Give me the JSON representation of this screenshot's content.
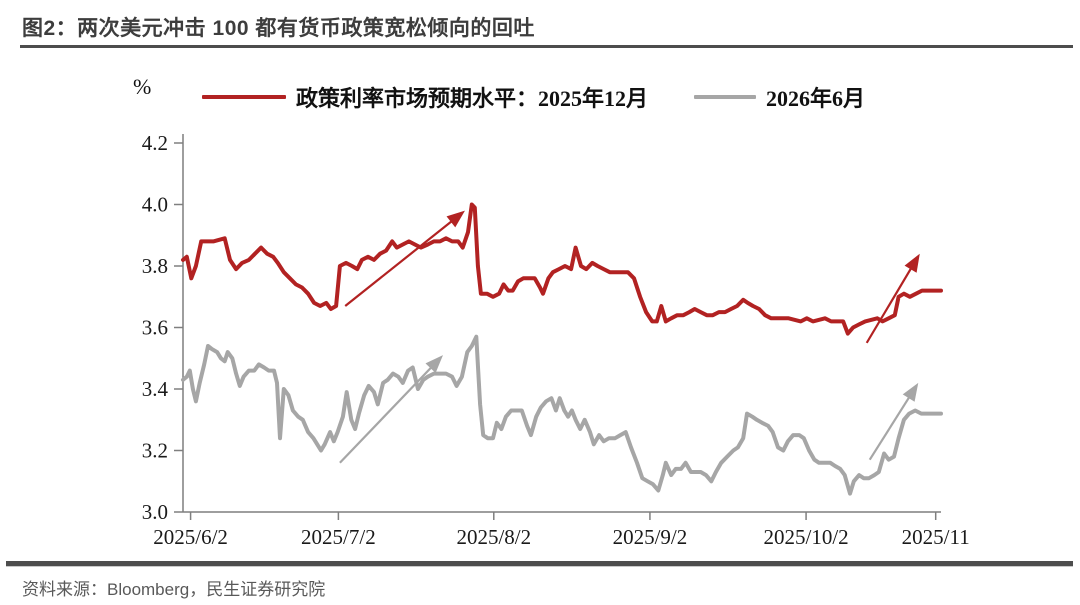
{
  "header": {
    "title": "图2：两次美元冲击 100 都有货币政策宽松倾向的回吐"
  },
  "footer": {
    "source": "资料来源：Bloomberg，民生证券研究院"
  },
  "colors": {
    "accent_red": "#B22222",
    "accent_gray": "#A6A6A6",
    "rule_dark": "#4D4D4D",
    "axis_gray": "#7F7F7F"
  },
  "chart_data": {
    "type": "line",
    "title": "两次美元冲击100都有货币政策宽松倾向的回吐",
    "unit_label": "%",
    "ylabel": "%",
    "xlabel": "",
    "grid": false,
    "legend_position": "top",
    "ylim": [
      3.0,
      4.2
    ],
    "yticks": [
      3.0,
      3.2,
      3.4,
      3.6,
      3.8,
      4.0,
      4.2
    ],
    "xticks": [
      {
        "label": "2025/6/2",
        "pos": 0.01
      },
      {
        "label": "2025/7/2",
        "pos": 0.205
      },
      {
        "label": "2025/8/2",
        "pos": 0.41
      },
      {
        "label": "2025/9/2",
        "pos": 0.616
      },
      {
        "label": "2025/10/2",
        "pos": 0.822
      },
      {
        "label": "2025/11",
        "pos": 0.993
      }
    ],
    "series": [
      {
        "name": "政策利率市场预期水平：2025年12月",
        "color": "#B22222",
        "points": [
          [
            0.0,
            3.82
          ],
          [
            0.005,
            3.83
          ],
          [
            0.011,
            3.76
          ],
          [
            0.017,
            3.8
          ],
          [
            0.024,
            3.88
          ],
          [
            0.04,
            3.88
          ],
          [
            0.055,
            3.89
          ],
          [
            0.062,
            3.82
          ],
          [
            0.07,
            3.79
          ],
          [
            0.078,
            3.81
          ],
          [
            0.087,
            3.82
          ],
          [
            0.095,
            3.84
          ],
          [
            0.103,
            3.86
          ],
          [
            0.111,
            3.84
          ],
          [
            0.119,
            3.83
          ],
          [
            0.125,
            3.81
          ],
          [
            0.133,
            3.78
          ],
          [
            0.141,
            3.76
          ],
          [
            0.149,
            3.74
          ],
          [
            0.157,
            3.73
          ],
          [
            0.165,
            3.71
          ],
          [
            0.173,
            3.68
          ],
          [
            0.181,
            3.67
          ],
          [
            0.189,
            3.68
          ],
          [
            0.195,
            3.66
          ],
          [
            0.202,
            3.67
          ],
          [
            0.207,
            3.8
          ],
          [
            0.215,
            3.81
          ],
          [
            0.223,
            3.8
          ],
          [
            0.23,
            3.79
          ],
          [
            0.236,
            3.82
          ],
          [
            0.244,
            3.83
          ],
          [
            0.252,
            3.82
          ],
          [
            0.26,
            3.84
          ],
          [
            0.268,
            3.85
          ],
          [
            0.276,
            3.88
          ],
          [
            0.282,
            3.86
          ],
          [
            0.29,
            3.87
          ],
          [
            0.298,
            3.88
          ],
          [
            0.306,
            3.87
          ],
          [
            0.314,
            3.86
          ],
          [
            0.323,
            3.87
          ],
          [
            0.331,
            3.88
          ],
          [
            0.339,
            3.88
          ],
          [
            0.347,
            3.89
          ],
          [
            0.355,
            3.88
          ],
          [
            0.363,
            3.88
          ],
          [
            0.369,
            3.86
          ],
          [
            0.376,
            3.91
          ],
          [
            0.381,
            4.0
          ],
          [
            0.385,
            3.99
          ],
          [
            0.389,
            3.8
          ],
          [
            0.393,
            3.71
          ],
          [
            0.401,
            3.71
          ],
          [
            0.409,
            3.7
          ],
          [
            0.417,
            3.71
          ],
          [
            0.423,
            3.74
          ],
          [
            0.429,
            3.72
          ],
          [
            0.435,
            3.72
          ],
          [
            0.442,
            3.75
          ],
          [
            0.449,
            3.76
          ],
          [
            0.464,
            3.76
          ],
          [
            0.471,
            3.73
          ],
          [
            0.475,
            3.71
          ],
          [
            0.482,
            3.76
          ],
          [
            0.488,
            3.78
          ],
          [
            0.496,
            3.79
          ],
          [
            0.504,
            3.8
          ],
          [
            0.512,
            3.79
          ],
          [
            0.518,
            3.86
          ],
          [
            0.525,
            3.8
          ],
          [
            0.532,
            3.79
          ],
          [
            0.54,
            3.81
          ],
          [
            0.547,
            3.8
          ],
          [
            0.555,
            3.79
          ],
          [
            0.563,
            3.78
          ],
          [
            0.579,
            3.78
          ],
          [
            0.587,
            3.78
          ],
          [
            0.595,
            3.76
          ],
          [
            0.603,
            3.7
          ],
          [
            0.611,
            3.65
          ],
          [
            0.619,
            3.62
          ],
          [
            0.625,
            3.62
          ],
          [
            0.631,
            3.67
          ],
          [
            0.637,
            3.62
          ],
          [
            0.644,
            3.63
          ],
          [
            0.652,
            3.64
          ],
          [
            0.66,
            3.64
          ],
          [
            0.668,
            3.65
          ],
          [
            0.675,
            3.66
          ],
          [
            0.683,
            3.65
          ],
          [
            0.691,
            3.64
          ],
          [
            0.699,
            3.64
          ],
          [
            0.707,
            3.65
          ],
          [
            0.715,
            3.65
          ],
          [
            0.723,
            3.66
          ],
          [
            0.731,
            3.67
          ],
          [
            0.739,
            3.69
          ],
          [
            0.745,
            3.68
          ],
          [
            0.752,
            3.67
          ],
          [
            0.76,
            3.66
          ],
          [
            0.768,
            3.64
          ],
          [
            0.776,
            3.63
          ],
          [
            0.799,
            3.63
          ],
          [
            0.815,
            3.62
          ],
          [
            0.823,
            3.63
          ],
          [
            0.831,
            3.62
          ],
          [
            0.847,
            3.63
          ],
          [
            0.855,
            3.62
          ],
          [
            0.871,
            3.62
          ],
          [
            0.877,
            3.58
          ],
          [
            0.884,
            3.6
          ],
          [
            0.892,
            3.61
          ],
          [
            0.9,
            3.62
          ],
          [
            0.916,
            3.63
          ],
          [
            0.923,
            3.62
          ],
          [
            0.931,
            3.63
          ],
          [
            0.939,
            3.64
          ],
          [
            0.944,
            3.7
          ],
          [
            0.951,
            3.71
          ],
          [
            0.959,
            3.7
          ],
          [
            0.967,
            3.71
          ],
          [
            0.975,
            3.72
          ],
          [
            1.0,
            3.72
          ]
        ]
      },
      {
        "name": "2026年6月",
        "color": "#A6A6A6",
        "points": [
          [
            0.0,
            3.43
          ],
          [
            0.005,
            3.44
          ],
          [
            0.009,
            3.46
          ],
          [
            0.013,
            3.4
          ],
          [
            0.017,
            3.36
          ],
          [
            0.022,
            3.42
          ],
          [
            0.028,
            3.48
          ],
          [
            0.033,
            3.54
          ],
          [
            0.038,
            3.53
          ],
          [
            0.045,
            3.52
          ],
          [
            0.05,
            3.5
          ],
          [
            0.055,
            3.49
          ],
          [
            0.059,
            3.52
          ],
          [
            0.065,
            3.5
          ],
          [
            0.07,
            3.45
          ],
          [
            0.075,
            3.41
          ],
          [
            0.08,
            3.44
          ],
          [
            0.087,
            3.46
          ],
          [
            0.094,
            3.46
          ],
          [
            0.1,
            3.48
          ],
          [
            0.107,
            3.47
          ],
          [
            0.113,
            3.46
          ],
          [
            0.12,
            3.46
          ],
          [
            0.124,
            3.42
          ],
          [
            0.128,
            3.24
          ],
          [
            0.133,
            3.4
          ],
          [
            0.139,
            3.38
          ],
          [
            0.145,
            3.33
          ],
          [
            0.152,
            3.31
          ],
          [
            0.158,
            3.3
          ],
          [
            0.165,
            3.26
          ],
          [
            0.172,
            3.24
          ],
          [
            0.177,
            3.22
          ],
          [
            0.182,
            3.2
          ],
          [
            0.187,
            3.22
          ],
          [
            0.194,
            3.26
          ],
          [
            0.199,
            3.23
          ],
          [
            0.204,
            3.26
          ],
          [
            0.211,
            3.31
          ],
          [
            0.216,
            3.39
          ],
          [
            0.222,
            3.3
          ],
          [
            0.227,
            3.27
          ],
          [
            0.232,
            3.32
          ],
          [
            0.239,
            3.38
          ],
          [
            0.245,
            3.41
          ],
          [
            0.252,
            3.39
          ],
          [
            0.257,
            3.35
          ],
          [
            0.264,
            3.42
          ],
          [
            0.27,
            3.43
          ],
          [
            0.277,
            3.45
          ],
          [
            0.284,
            3.44
          ],
          [
            0.29,
            3.42
          ],
          [
            0.297,
            3.46
          ],
          [
            0.303,
            3.47
          ],
          [
            0.31,
            3.4
          ],
          [
            0.317,
            3.43
          ],
          [
            0.323,
            3.44
          ],
          [
            0.331,
            3.45
          ],
          [
            0.347,
            3.45
          ],
          [
            0.355,
            3.44
          ],
          [
            0.361,
            3.41
          ],
          [
            0.368,
            3.44
          ],
          [
            0.375,
            3.52
          ],
          [
            0.381,
            3.54
          ],
          [
            0.387,
            3.57
          ],
          [
            0.392,
            3.35
          ],
          [
            0.396,
            3.25
          ],
          [
            0.402,
            3.24
          ],
          [
            0.409,
            3.24
          ],
          [
            0.414,
            3.29
          ],
          [
            0.42,
            3.27
          ],
          [
            0.426,
            3.31
          ],
          [
            0.433,
            3.33
          ],
          [
            0.447,
            3.33
          ],
          [
            0.454,
            3.28
          ],
          [
            0.459,
            3.25
          ],
          [
            0.466,
            3.31
          ],
          [
            0.472,
            3.34
          ],
          [
            0.479,
            3.36
          ],
          [
            0.486,
            3.37
          ],
          [
            0.492,
            3.33
          ],
          [
            0.497,
            3.37
          ],
          [
            0.503,
            3.33
          ],
          [
            0.508,
            3.31
          ],
          [
            0.513,
            3.33
          ],
          [
            0.518,
            3.3
          ],
          [
            0.524,
            3.27
          ],
          [
            0.53,
            3.3
          ],
          [
            0.537,
            3.26
          ],
          [
            0.542,
            3.22
          ],
          [
            0.549,
            3.25
          ],
          [
            0.555,
            3.23
          ],
          [
            0.562,
            3.24
          ],
          [
            0.57,
            3.24
          ],
          [
            0.577,
            3.25
          ],
          [
            0.584,
            3.26
          ],
          [
            0.591,
            3.21
          ],
          [
            0.599,
            3.16
          ],
          [
            0.606,
            3.11
          ],
          [
            0.613,
            3.1
          ],
          [
            0.62,
            3.09
          ],
          [
            0.627,
            3.07
          ],
          [
            0.633,
            3.12
          ],
          [
            0.637,
            3.16
          ],
          [
            0.644,
            3.12
          ],
          [
            0.65,
            3.14
          ],
          [
            0.657,
            3.14
          ],
          [
            0.663,
            3.16
          ],
          [
            0.67,
            3.13
          ],
          [
            0.677,
            3.13
          ],
          [
            0.683,
            3.13
          ],
          [
            0.69,
            3.12
          ],
          [
            0.697,
            3.1
          ],
          [
            0.703,
            3.13
          ],
          [
            0.71,
            3.16
          ],
          [
            0.718,
            3.18
          ],
          [
            0.726,
            3.2
          ],
          [
            0.732,
            3.21
          ],
          [
            0.739,
            3.24
          ],
          [
            0.744,
            3.32
          ],
          [
            0.751,
            3.31
          ],
          [
            0.757,
            3.3
          ],
          [
            0.764,
            3.29
          ],
          [
            0.772,
            3.28
          ],
          [
            0.778,
            3.26
          ],
          [
            0.785,
            3.21
          ],
          [
            0.792,
            3.2
          ],
          [
            0.798,
            3.23
          ],
          [
            0.805,
            3.25
          ],
          [
            0.813,
            3.25
          ],
          [
            0.819,
            3.24
          ],
          [
            0.826,
            3.2
          ],
          [
            0.833,
            3.17
          ],
          [
            0.839,
            3.16
          ],
          [
            0.854,
            3.16
          ],
          [
            0.86,
            3.15
          ],
          [
            0.867,
            3.14
          ],
          [
            0.873,
            3.12
          ],
          [
            0.88,
            3.06
          ],
          [
            0.885,
            3.1
          ],
          [
            0.892,
            3.12
          ],
          [
            0.898,
            3.11
          ],
          [
            0.905,
            3.11
          ],
          [
            0.912,
            3.12
          ],
          [
            0.918,
            3.13
          ],
          [
            0.925,
            3.19
          ],
          [
            0.931,
            3.17
          ],
          [
            0.938,
            3.18
          ],
          [
            0.944,
            3.24
          ],
          [
            0.951,
            3.3
          ],
          [
            0.958,
            3.32
          ],
          [
            0.966,
            3.33
          ],
          [
            0.974,
            3.32
          ],
          [
            1.0,
            3.32
          ]
        ]
      }
    ],
    "annotations": {
      "arrows": [
        {
          "color": "#B22222",
          "from": [
            0.214,
            3.67
          ],
          "to": [
            0.372,
            3.98
          ]
        },
        {
          "color": "#B22222",
          "from": [
            0.902,
            3.55
          ],
          "to": [
            0.972,
            3.84
          ]
        },
        {
          "color": "#A6A6A6",
          "from": [
            0.207,
            3.16
          ],
          "to": [
            0.343,
            3.51
          ]
        },
        {
          "color": "#A6A6A6",
          "from": [
            0.906,
            3.17
          ],
          "to": [
            0.97,
            3.42
          ]
        }
      ]
    }
  }
}
